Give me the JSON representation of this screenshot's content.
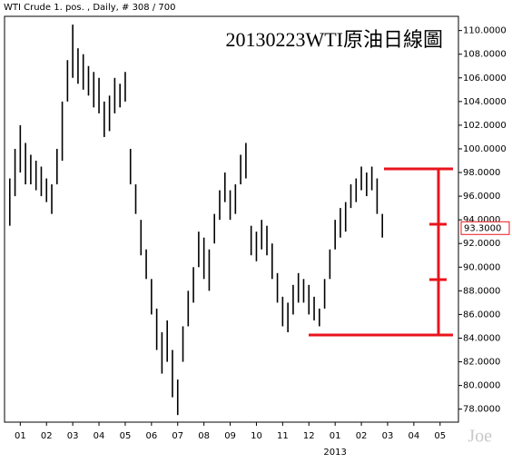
{
  "chart_data": {
    "type": "hlc",
    "header": "WTI Crude 1. pos. , Daily, # 308 / 700",
    "title": "20130223WTI原油日線圖",
    "watermark": "Joe",
    "year_label": "2013",
    "color": "#000000",
    "x": [
      -0.4,
      -0.2,
      0,
      0.2,
      0.4,
      0.6,
      0.8,
      1.0,
      1.2,
      1.4,
      1.6,
      1.8,
      2.0,
      2.2,
      2.4,
      2.6,
      2.8,
      3.0,
      3.2,
      3.4,
      3.6,
      3.8,
      4.0,
      4.2,
      4.4,
      4.6,
      4.8,
      5.0,
      5.2,
      5.4,
      5.6,
      5.8,
      6.0,
      6.2,
      6.4,
      6.6,
      6.8,
      7.0,
      7.2,
      7.4,
      7.6,
      7.8,
      8.0,
      8.2,
      8.4,
      8.6,
      8.8,
      9.0,
      9.2,
      9.4,
      9.6,
      9.8,
      10.0,
      10.2,
      10.4,
      10.6,
      10.8,
      11.0,
      11.2,
      11.4,
      11.6,
      11.8,
      12.0,
      12.2,
      12.4,
      12.6,
      12.8,
      13.0,
      13.2,
      13.4,
      13.6,
      13.8
    ],
    "high": [
      97.5,
      100,
      102,
      100.5,
      99.5,
      99,
      98.5,
      97.5,
      97,
      100,
      104,
      107.5,
      110.5,
      108.5,
      108,
      107,
      106.5,
      106,
      104,
      104.5,
      106,
      105.5,
      106.5,
      100,
      97,
      94,
      91.5,
      89,
      86.5,
      84.5,
      85.5,
      83,
      80.5,
      85,
      88,
      90,
      93,
      92.5,
      91.5,
      94.5,
      96.5,
      98,
      96.5,
      97,
      99.5,
      100.5,
      93.5,
      93,
      94,
      93.5,
      92,
      89.5,
      87.5,
      87,
      88.5,
      89.5,
      89,
      88.5,
      87.5,
      86.5,
      89,
      91.5,
      94,
      95,
      95.5,
      97,
      97.5,
      98.5,
      98,
      98.5,
      97.5,
      94.5
    ],
    "low": [
      93.5,
      96,
      98,
      97,
      97,
      96.5,
      96,
      95.5,
      94.5,
      97,
      99,
      104,
      106,
      105.5,
      105,
      104.5,
      103.5,
      103,
      101,
      101.5,
      103,
      103.5,
      104,
      97,
      94.5,
      91,
      89,
      86,
      83,
      81,
      82,
      79,
      77.5,
      82,
      85,
      87,
      90,
      89,
      88,
      92,
      94,
      95.5,
      94,
      94.5,
      97,
      97.5,
      91,
      90.5,
      91.5,
      91,
      89,
      87,
      85,
      84.5,
      86,
      87,
      87,
      86,
      85.5,
      85,
      86.5,
      89,
      91.5,
      92.5,
      93,
      95,
      95.5,
      96.5,
      96,
      96.5,
      94.5,
      92.5
    ],
    "xlim": [
      -0.6,
      16.7
    ],
    "ylim": [
      76.9,
      111.2
    ],
    "xticks": [
      {
        "value": 0,
        "label": "01"
      },
      {
        "value": 1,
        "label": "02"
      },
      {
        "value": 2,
        "label": "03"
      },
      {
        "value": 3,
        "label": "04"
      },
      {
        "value": 4,
        "label": "05"
      },
      {
        "value": 5,
        "label": "06"
      },
      {
        "value": 6,
        "label": "07"
      },
      {
        "value": 7,
        "label": "08"
      },
      {
        "value": 8,
        "label": "09"
      },
      {
        "value": 9,
        "label": "10"
      },
      {
        "value": 10,
        "label": "11"
      },
      {
        "value": 11,
        "label": "12"
      },
      {
        "value": 12,
        "label": "01"
      },
      {
        "value": 13,
        "label": "02"
      },
      {
        "value": 14,
        "label": "03"
      },
      {
        "value": 15,
        "label": "04"
      },
      {
        "value": 16,
        "label": "05"
      }
    ],
    "yticks": [
      {
        "value": 78,
        "label": "78.0000"
      },
      {
        "value": 80,
        "label": "80.0000"
      },
      {
        "value": 82,
        "label": "82.0000"
      },
      {
        "value": 84,
        "label": "84.0000"
      },
      {
        "value": 86,
        "label": "86.0000"
      },
      {
        "value": 88,
        "label": "88.0000"
      },
      {
        "value": 90,
        "label": "90.0000"
      },
      {
        "value": 92,
        "label": "92.0000"
      },
      {
        "value": 94,
        "label": "94.0000"
      },
      {
        "value": 96,
        "label": "96.0000"
      },
      {
        "value": 98,
        "label": "98.0000"
      },
      {
        "value": 100,
        "label": "100.0000"
      },
      {
        "value": 102,
        "label": "102.0000"
      },
      {
        "value": 104,
        "label": "104.0000"
      },
      {
        "value": 106,
        "label": "106.0000"
      },
      {
        "value": 108,
        "label": "108.0000"
      },
      {
        "value": 110,
        "label": "110.0000"
      }
    ],
    "last_price": {
      "value": 93.3,
      "label": "93.3000"
    }
  }
}
